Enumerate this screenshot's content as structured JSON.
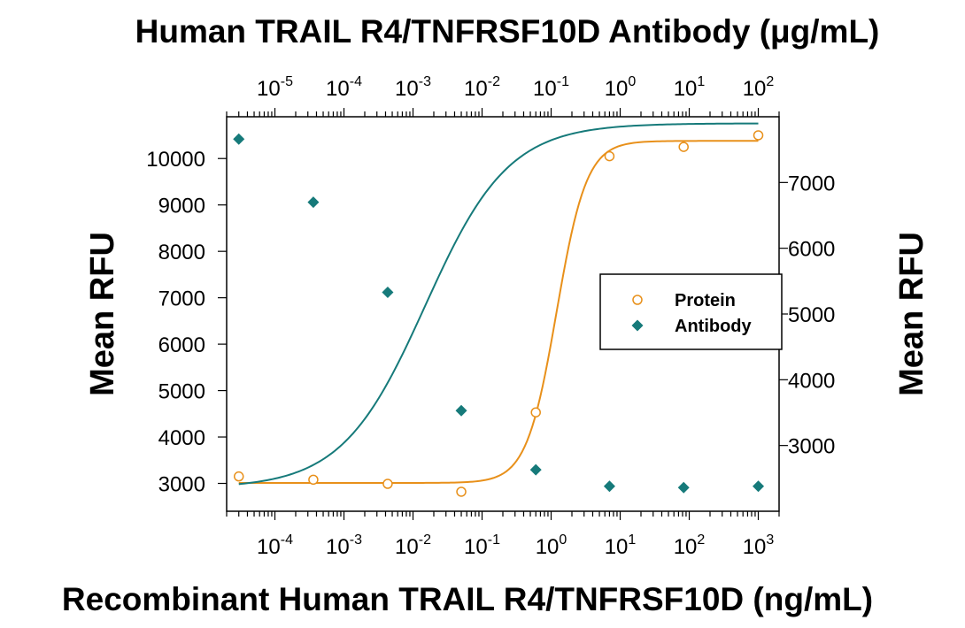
{
  "chart_data": {
    "type": "scatter",
    "title": "Human TRAIL R4/TNFRSF10D Antibody (μg/mL)",
    "xlabel": "Recombinant Human TRAIL R4/TNFRSF10D (ng/mL)",
    "x2label": "Human TRAIL R4/TNFRSF10D Antibody (μg/mL)",
    "ylabel": "Mean RFU",
    "y2label": "Mean RFU",
    "xscale": "log",
    "xlim": [
      2e-05,
      2000
    ],
    "x2lim": [
      2e-06,
      200
    ],
    "ylim": [
      2400,
      10900
    ],
    "y2lim": [
      2000,
      8000
    ],
    "x_ticks": [
      "10^-4",
      "10^-3",
      "10^-2",
      "10^-1",
      "10^0",
      "10^1",
      "10^2",
      "10^3"
    ],
    "x2_ticks": [
      "10^-5",
      "10^-4",
      "10^-3",
      "10^-2",
      "10^-1",
      "10^0",
      "10^1",
      "10^2"
    ],
    "y_ticks": [
      3000,
      4000,
      5000,
      6000,
      7000,
      8000,
      9000,
      10000
    ],
    "y2_ticks": [
      3000,
      4000,
      5000,
      6000,
      7000
    ],
    "legend_position": "center-right",
    "series": [
      {
        "name": "Protein",
        "axis": "bottom-left",
        "marker": "open-circle",
        "color": "#E8901A",
        "x": [
          3e-05,
          0.00036,
          0.0043,
          0.05,
          0.6,
          7,
          83,
          1000
        ],
        "y": [
          3150,
          3080,
          2990,
          2820,
          4530,
          10050,
          10250,
          10500
        ],
        "fit": {
          "bottom": 3010,
          "top": 10380,
          "ec50": 1.2,
          "hill": 2.0
        }
      },
      {
        "name": "Antibody",
        "axis": "top-right",
        "marker": "filled-diamond",
        "color": "#167A7A",
        "x": [
          3e-06,
          3.6e-05,
          0.00043,
          0.005,
          0.06,
          0.7,
          8.3,
          100
        ],
        "y": [
          7660,
          6700,
          5330,
          3530,
          2630,
          2380,
          2360,
          2380
        ],
        "fit": {
          "bottom": 2350,
          "top": 7900,
          "ec50": 0.0015,
          "hill": 0.72
        }
      }
    ]
  }
}
